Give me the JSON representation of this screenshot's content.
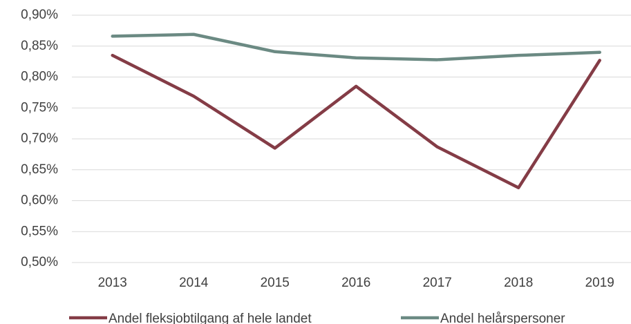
{
  "chart_data": {
    "type": "line",
    "categories": [
      "2013",
      "2014",
      "2015",
      "2016",
      "2017",
      "2018",
      "2019"
    ],
    "series": [
      {
        "name": "Andel fleksjobtilgang af hele landet",
        "color": "#843c46",
        "values": [
          0.835,
          0.769,
          0.685,
          0.785,
          0.687,
          0.621,
          0.827
        ]
      },
      {
        "name": "Andel helårspersoner",
        "color": "#6b8a83",
        "values": [
          0.866,
          0.869,
          0.841,
          0.831,
          0.828,
          0.835,
          0.84
        ]
      }
    ],
    "ylim": [
      0.5,
      0.9
    ],
    "yticks": [
      {
        "value": 0.5,
        "label": "0,50%"
      },
      {
        "value": 0.55,
        "label": "0,55%"
      },
      {
        "value": 0.6,
        "label": "0,60%"
      },
      {
        "value": 0.65,
        "label": "0,65%"
      },
      {
        "value": 0.7,
        "label": "0,70%"
      },
      {
        "value": 0.75,
        "label": "0,75%"
      },
      {
        "value": 0.8,
        "label": "0,80%"
      },
      {
        "value": 0.85,
        "label": "0,85%"
      },
      {
        "value": 0.9,
        "label": "0,90%"
      }
    ],
    "grid": true,
    "legend": "bottom"
  }
}
